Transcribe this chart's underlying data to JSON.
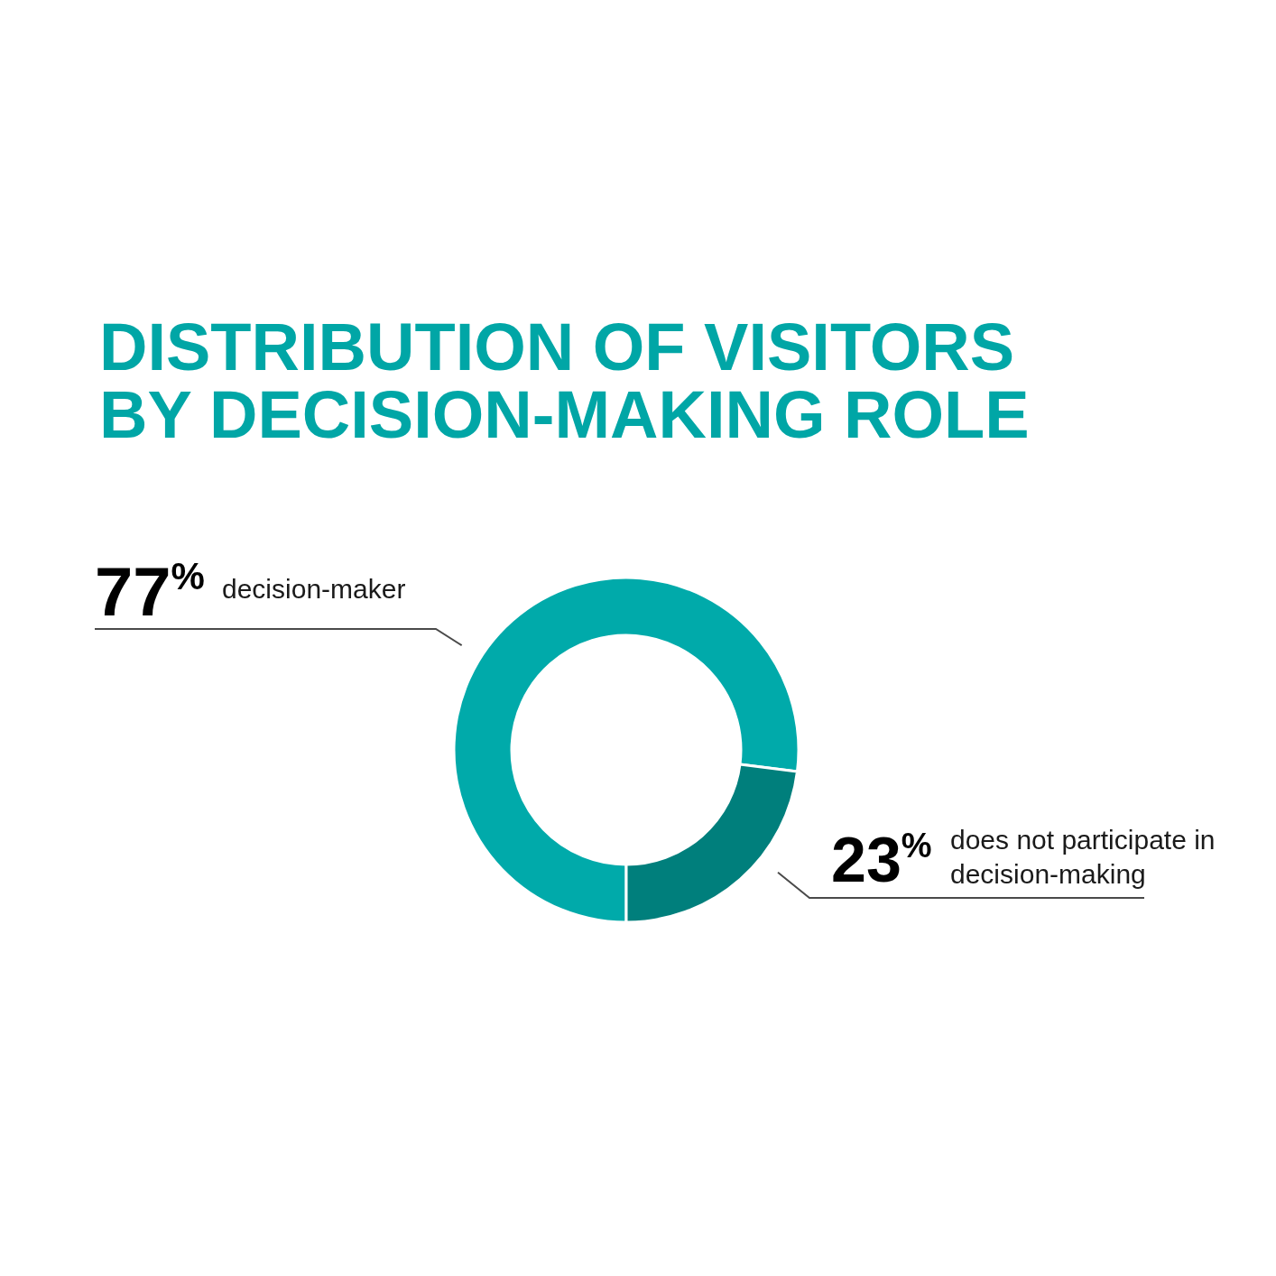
{
  "chart_data": {
    "type": "donut",
    "title": "DISTRIBUTION OF VISITORS BY DECISION-MAKING ROLE",
    "categories": [
      "decision-maker",
      "does not participate in decision-making"
    ],
    "values": [
      77,
      23
    ],
    "colors": [
      "#00aaaa",
      "#007f7c"
    ],
    "value_labels": [
      "77$^{%}$",
      "23$^{%}$"
    ]
  }
}
